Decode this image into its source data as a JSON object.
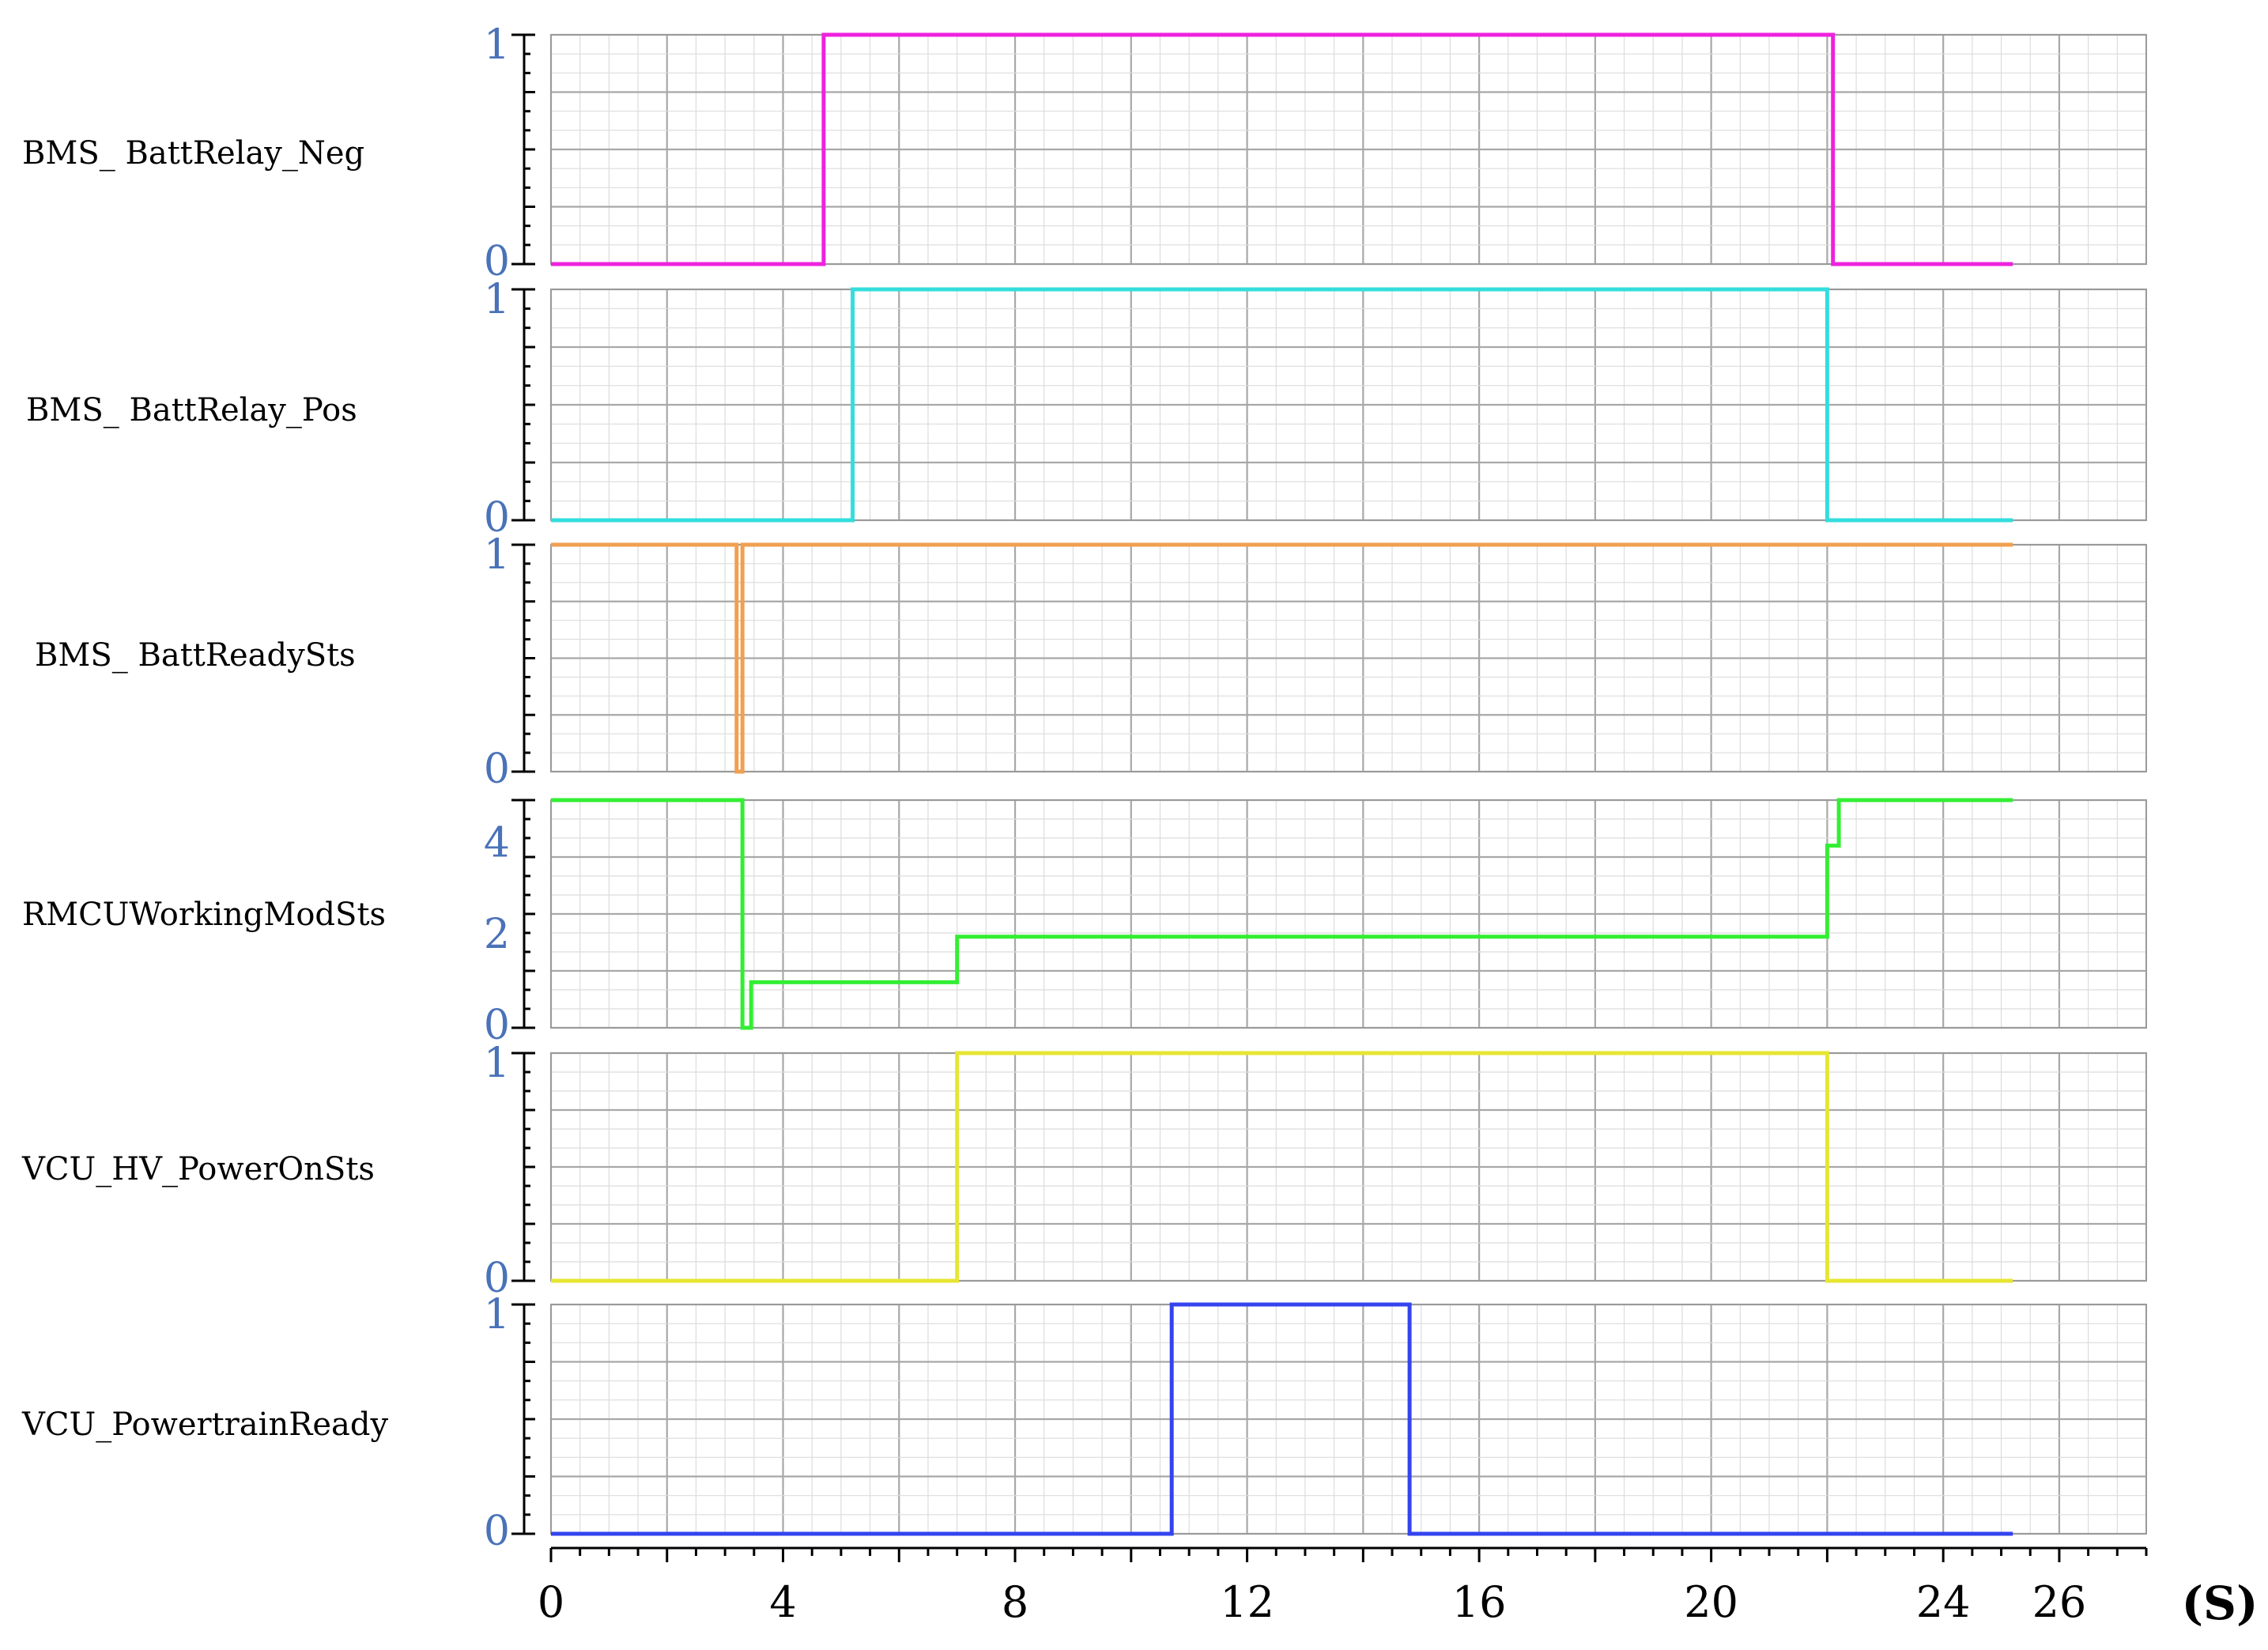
{
  "chart_data": {
    "type": "line",
    "x_unit_label": "(S)",
    "x_ticks": [
      0,
      4,
      8,
      12,
      16,
      20,
      24,
      26
    ],
    "xlim": [
      0,
      27.5
    ],
    "grid": true,
    "series": [
      {
        "name": "BMS_ BattRelay_Neg",
        "color": "#ee22dd",
        "ylim": [
          0,
          1
        ],
        "y_ticks": [
          0,
          1
        ],
        "points": [
          [
            0,
            0
          ],
          [
            4.7,
            0
          ],
          [
            4.7,
            1
          ],
          [
            22.1,
            1
          ],
          [
            22.1,
            0
          ],
          [
            25.2,
            0
          ]
        ]
      },
      {
        "name": "BMS_ BattRelay_Pos",
        "color": "#33dddd",
        "ylim": [
          0,
          1
        ],
        "y_ticks": [
          0,
          1
        ],
        "points": [
          [
            0,
            0
          ],
          [
            5.2,
            0
          ],
          [
            5.2,
            1
          ],
          [
            22.0,
            1
          ],
          [
            22.0,
            0
          ],
          [
            25.2,
            0
          ]
        ]
      },
      {
        "name": "BMS_ BattReadySts",
        "color": "#f0a050",
        "ylim": [
          0,
          1
        ],
        "y_ticks": [
          0,
          1
        ],
        "points": [
          [
            0,
            1
          ],
          [
            3.2,
            1
          ],
          [
            3.2,
            0
          ],
          [
            3.3,
            0
          ],
          [
            3.3,
            1
          ],
          [
            25.2,
            1
          ]
        ]
      },
      {
        "name": "RMCUWorkingModSts",
        "color": "#33ee33",
        "ylim": [
          0,
          5
        ],
        "y_ticks": [
          0,
          2,
          4
        ],
        "points": [
          [
            0,
            5
          ],
          [
            3.3,
            5
          ],
          [
            3.3,
            0
          ],
          [
            3.45,
            0
          ],
          [
            3.45,
            1
          ],
          [
            7.0,
            1
          ],
          [
            7.0,
            2
          ],
          [
            22.0,
            2
          ],
          [
            22.0,
            4
          ],
          [
            22.2,
            4
          ],
          [
            22.2,
            5
          ],
          [
            25.2,
            5
          ]
        ]
      },
      {
        "name": "VCU_HV_PowerOnSts",
        "color": "#e6e633",
        "ylim": [
          0,
          1
        ],
        "y_ticks": [
          0,
          1
        ],
        "points": [
          [
            0,
            0
          ],
          [
            7.0,
            0
          ],
          [
            7.0,
            1
          ],
          [
            22.0,
            1
          ],
          [
            22.0,
            0
          ],
          [
            25.2,
            0
          ]
        ]
      },
      {
        "name": "VCU_PowertrainReady",
        "color": "#3344ee",
        "ylim": [
          0,
          1
        ],
        "y_ticks": [
          0,
          1
        ],
        "points": [
          [
            0,
            0
          ],
          [
            10.7,
            0
          ],
          [
            10.7,
            1
          ],
          [
            14.8,
            1
          ],
          [
            14.8,
            0
          ],
          [
            25.2,
            0
          ]
        ]
      }
    ]
  }
}
